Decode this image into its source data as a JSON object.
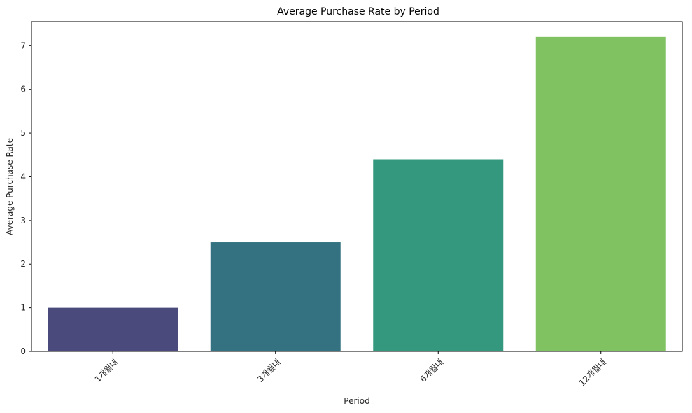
{
  "chart_data": {
    "type": "bar",
    "title": "Average Purchase Rate by Period",
    "xlabel": "Period",
    "ylabel": "Average Purchase Rate",
    "categories": [
      "1개월내",
      "3개월내",
      "6개월내",
      "12개월내"
    ],
    "values": [
      1.0,
      2.5,
      4.4,
      7.2
    ],
    "colors": [
      "#4a4a7c",
      "#357281",
      "#34987e",
      "#80c261"
    ],
    "ylim": [
      0,
      7.55
    ],
    "yticks": [
      0,
      1,
      2,
      3,
      4,
      5,
      6,
      7
    ],
    "grid": false,
    "legend": "none"
  }
}
